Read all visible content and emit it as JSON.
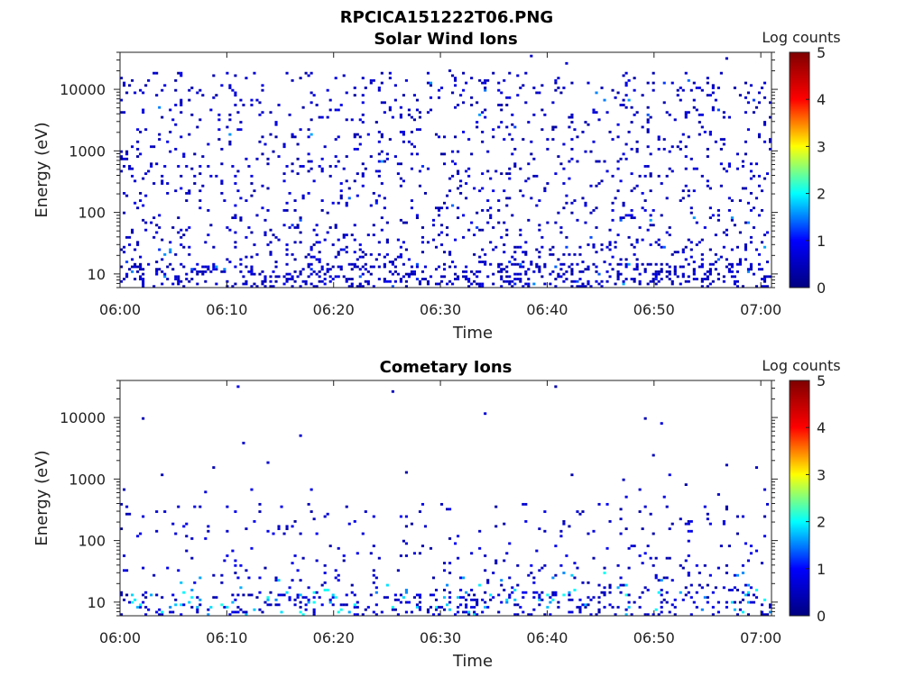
{
  "figure_title": "RPCICA151222T06.PNG",
  "colormap": [
    "#00007f",
    "#0000ff",
    "#00ffff",
    "#ffff00",
    "#ff0000",
    "#7f0000"
  ],
  "chart_data": [
    {
      "type": "heatmap",
      "title": "Solar Wind Ions",
      "xlabel": "Time",
      "ylabel": "Energy (eV)",
      "x_range": [
        "06:00",
        "07:01"
      ],
      "x_ticks": [
        "06:00",
        "06:10",
        "06:20",
        "06:30",
        "06:40",
        "06:50",
        "07:00"
      ],
      "y_range": [
        6,
        40000
      ],
      "y_scale": "log",
      "y_ticks": [
        10,
        100,
        1000,
        10000
      ],
      "y_tick_labels": [
        "10",
        "100",
        "1000",
        "10000"
      ],
      "colorbar": {
        "label": "Log counts",
        "range": [
          0,
          5
        ],
        "ticks": [
          0,
          1,
          2,
          3,
          4,
          5
        ],
        "tick_labels": [
          "0",
          "1",
          "2",
          "3",
          "4",
          "5"
        ]
      },
      "profile": "solarwind",
      "seed": 17
    },
    {
      "type": "heatmap",
      "title": "Cometary Ions",
      "xlabel": "Time",
      "ylabel": "Energy (eV)",
      "x_range": [
        "06:00",
        "07:01"
      ],
      "x_ticks": [
        "06:00",
        "06:10",
        "06:20",
        "06:30",
        "06:40",
        "06:50",
        "07:00"
      ],
      "y_range": [
        6,
        40000
      ],
      "y_scale": "log",
      "y_ticks": [
        10,
        100,
        1000,
        10000
      ],
      "y_tick_labels": [
        "10",
        "100",
        "1000",
        "10000"
      ],
      "colorbar": {
        "label": "Log counts",
        "range": [
          0,
          5
        ],
        "ticks": [
          0,
          1,
          2,
          3,
          4,
          5
        ],
        "tick_labels": [
          "0",
          "1",
          "2",
          "3",
          "4",
          "5"
        ]
      },
      "profile": "cometary",
      "seed": 91
    }
  ]
}
